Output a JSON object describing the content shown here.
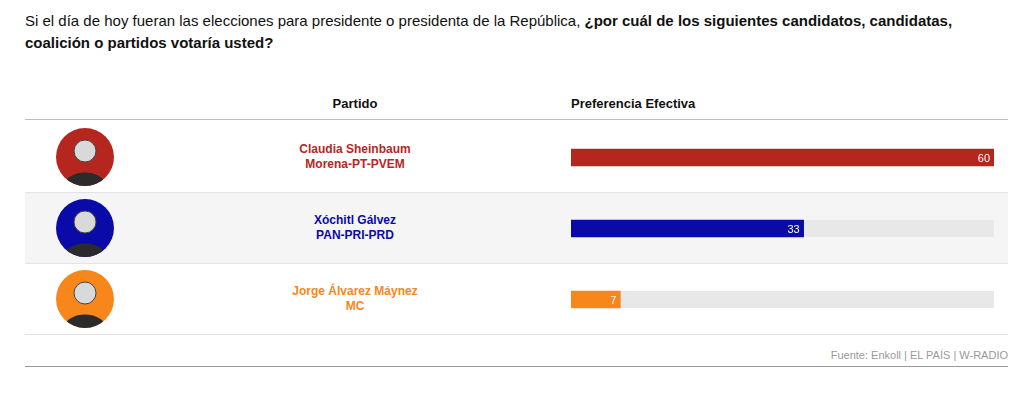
{
  "chart_data": {
    "type": "bar",
    "title": "Si el día de hoy fueran las elecciones para presidente o presidenta de la República, ¿por cuál de los siguientes candidatos, candidatas, coalición o partidos votaría usted?",
    "ylabel": "Partido",
    "xlabel": "Preferencia Efectiva",
    "source": "Fuente: Enkoll | EL PAÍS | W-RADIO",
    "categories": [
      [
        "Claudia Sheinbaum",
        "Morena-PT-PVEM"
      ],
      [
        "Xóchitl Gálvez",
        "PAN-PRI-PRD"
      ],
      [
        "Jorge Álvarez Máynez",
        "MC"
      ]
    ],
    "values": [
      60,
      33,
      7
    ],
    "colors": [
      "#b5271e",
      "#0a0aa8",
      "#f7861b"
    ],
    "xlim": [
      0,
      60
    ],
    "orientation": "horizontal",
    "data_labels": true,
    "tick_labels": false,
    "grid": false
  }
}
